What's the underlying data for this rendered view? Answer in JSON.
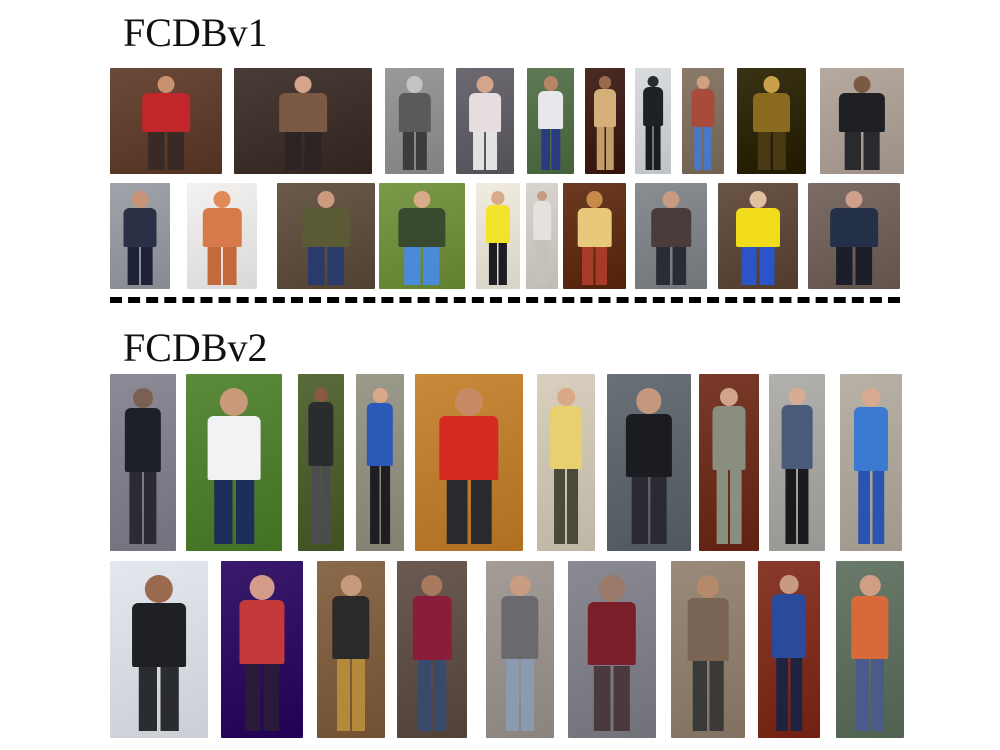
{
  "sections": [
    {
      "title": "FCDBv1",
      "rows": [
        [
          {
            "bg": "#6b4a3a",
            "body": "#c0262a",
            "skin": "#c89270",
            "legs": "#3a2a26"
          },
          {
            "bg": "#4a3c36",
            "body": "#7a5a44",
            "skin": "#d6a48a",
            "legs": "#2c2424"
          },
          {
            "bg": "#9a9a9a",
            "body": "#5a5a5a",
            "skin": "#c4c4c4",
            "legs": "#3c3c3c"
          },
          {
            "bg": "#6c6a70",
            "body": "#e6dede",
            "skin": "#d4a48c",
            "legs": "#e2e2e2"
          },
          {
            "bg": "#5e7a54",
            "body": "#e8e8ec",
            "skin": "#b88468",
            "legs": "#2a3c80"
          },
          {
            "bg": "#4a2c24",
            "body": "#d6b07a",
            "skin": "#9a6a4c",
            "legs": "#c49c6a"
          },
          {
            "bg": "#d8dcde",
            "body": "#1e2226",
            "skin": "#2a2a2a",
            "legs": "#1a1c20"
          },
          {
            "bg": "#8a7a6a",
            "body": "#a84a3c",
            "skin": "#d0a084",
            "legs": "#4a78c8"
          },
          {
            "bg": "#3a3214",
            "body": "#8a6a1e",
            "skin": "#c8a04a",
            "legs": "#4a3a14"
          },
          {
            "bg": "#b6aaa0",
            "body": "#1e2024",
            "skin": "#7a5a44",
            "legs": "#2a2a2e"
          }
        ],
        [
          {
            "bg": "#a0a4aa",
            "body": "#2a3046",
            "skin": "#c89478",
            "legs": "#1e2236"
          },
          {
            "bg": "#f4f2f0",
            "body": "#d67a4a",
            "skin": "#e08a5a",
            "legs": "#c26a3c"
          },
          {
            "bg": "#6a5a4a",
            "body": "#5a5a34",
            "skin": "#cc9a7c",
            "legs": "#2a3a6a"
          },
          {
            "bg": "#7a9a4a",
            "body": "#3a4a2e",
            "skin": "#d8aa88",
            "legs": "#4a8ad8"
          },
          {
            "bg": "#f0ece0",
            "body": "#f2e42a",
            "skin": "#d8aa88",
            "legs": "#1e1e22"
          },
          {
            "bg": "#d8d4ce",
            "body": "#e4e2de",
            "skin": "#c89c80",
            "legs": "#c4c0ba"
          },
          {
            "bg": "#6a3a22",
            "body": "#e8c87a",
            "skin": "#c88a4a",
            "legs": "#a83a2a"
          },
          {
            "bg": "#8a8e92",
            "body": "#4a3c3a",
            "skin": "#c89a80",
            "legs": "#2a2c34"
          },
          {
            "bg": "#6a5446",
            "body": "#f0dc1a",
            "skin": "#e0c0a0",
            "legs": "#2a54c8"
          },
          {
            "bg": "#7c6c66",
            "body": "#243048",
            "skin": "#d0a08c",
            "legs": "#1c1e2a"
          }
        ]
      ]
    },
    {
      "title": "FCDBv2",
      "rows": [
        [
          {
            "bg": "#8c8a96",
            "body": "#1e2028",
            "skin": "#7a6050",
            "legs": "#2c2a34"
          },
          {
            "bg": "#5a8a3a",
            "body": "#f0f2f4",
            "skin": "#c89a7a",
            "legs": "#1e2e5a"
          },
          {
            "bg": "#5a6a3a",
            "body": "#2a2c2e",
            "skin": "#8a5a40",
            "legs": "#4a4c4e"
          },
          {
            "bg": "#9c9a8a",
            "body": "#2a5ab8",
            "skin": "#d8a888",
            "legs": "#1e1e22"
          },
          {
            "bg": "#c88a3a",
            "body": "#d42a22",
            "skin": "#c88a64",
            "legs": "#2a2a2e"
          },
          {
            "bg": "#d8cfbe",
            "body": "#e8d070",
            "skin": "#d8a888",
            "legs": "#4a4a3a"
          },
          {
            "bg": "#6a7078",
            "body": "#1a1c22",
            "skin": "#c4987c",
            "legs": "#2a2a30"
          },
          {
            "bg": "#7a3a2a",
            "body": "#8a8e7e",
            "skin": "#d0a48a",
            "legs": "#8a8e7e"
          },
          {
            "bg": "#b2b0ac",
            "body": "#4a5a7a",
            "skin": "#d6ac94",
            "legs": "#1a1a1e"
          },
          {
            "bg": "#b8b2a6",
            "body": "#3a7ad0",
            "skin": "#d8aa90",
            "legs": "#2a54b0"
          }
        ],
        [
          {
            "bg": "#e4e8ee",
            "body": "#1e2024",
            "skin": "#9a6a4e",
            "legs": "#2a2c30"
          },
          {
            "bg": "#3a1a6a",
            "body": "#c43a3a",
            "skin": "#d49a8a",
            "legs": "#2a1a3a"
          },
          {
            "bg": "#8a6a4a",
            "body": "#2a2a2a",
            "skin": "#c89a7c",
            "legs": "#b48a3a"
          },
          {
            "bg": "#6a5a52",
            "body": "#8a1e3a",
            "skin": "#a87a60",
            "legs": "#3a4a6a"
          },
          {
            "bg": "#a49c96",
            "body": "#6a6a6e",
            "skin": "#c89c80",
            "legs": "#8a9ab0"
          },
          {
            "bg": "#8a8a92",
            "body": "#7a1e2a",
            "skin": "#9a7a6a",
            "legs": "#4a3a3e"
          },
          {
            "bg": "#9a8a7a",
            "body": "#7a6454",
            "skin": "#b48a6a",
            "legs": "#3a3a3a"
          },
          {
            "bg": "#8a3a2a",
            "body": "#2a4a9a",
            "skin": "#c89a80",
            "legs": "#1e2440"
          },
          {
            "bg": "#6a7a6a",
            "body": "#d86a3a",
            "skin": "#d0a084",
            "legs": "#4a5a8a"
          }
        ]
      ]
    }
  ]
}
